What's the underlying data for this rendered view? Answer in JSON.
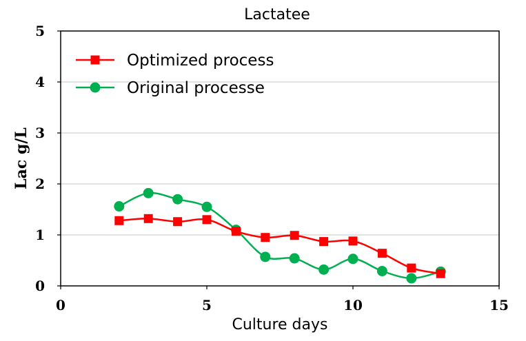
{
  "chart_data": {
    "type": "line",
    "title": "Lactatee",
    "xlabel": "Culture days",
    "ylabel": "Lac g/L",
    "xlim": [
      0,
      15
    ],
    "ylim": [
      0,
      5
    ],
    "xticks": [
      "0",
      "5",
      "10",
      "15"
    ],
    "yticks": [
      "0",
      "1",
      "2",
      "3",
      "4",
      "5"
    ],
    "grid": "horizontal",
    "legend_position": "top-left",
    "x": [
      2,
      3,
      4,
      5,
      6,
      7,
      8,
      9,
      10,
      11,
      12,
      13
    ],
    "series": [
      {
        "name": "Optimized process",
        "color": "#ff0000",
        "marker": "square",
        "values": [
          1.28,
          1.32,
          1.26,
          1.3,
          1.07,
          0.95,
          0.99,
          0.87,
          0.88,
          0.64,
          0.35,
          0.24
        ]
      },
      {
        "name": "Original processe",
        "color": "#00b050",
        "marker": "circle",
        "values": [
          1.56,
          1.82,
          1.7,
          1.55,
          1.1,
          0.57,
          0.54,
          0.32,
          0.53,
          0.29,
          0.15,
          0.28
        ]
      }
    ]
  }
}
